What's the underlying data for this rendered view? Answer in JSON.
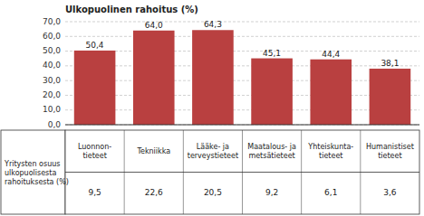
{
  "chart_data": {
    "type": "bar",
    "title": "Ulkopuolinen rahoitus (%)",
    "categories": [
      "Luonnon-\ntieteet",
      "Tekniikka",
      "Lääke- ja\nterveystieteet",
      "Maatalous- ja\nmetsätieteet",
      "Yhteiskunta-\ntieteet",
      "Humanistiset\ntieteet"
    ],
    "values": [
      50.4,
      64.0,
      64.3,
      45.1,
      44.4,
      38.1
    ],
    "value_labels": [
      "50,4",
      "64,0",
      "64,3",
      "45,1",
      "44,4",
      "38,1"
    ],
    "data_labels": true,
    "color": "#b94040",
    "ylim": [
      0,
      70
    ],
    "yticks": [
      {
        "value": 0.0,
        "label": "0,0"
      },
      {
        "value": 10.0,
        "label": "10,0"
      },
      {
        "value": 20.0,
        "label": "20,0"
      },
      {
        "value": 30.0,
        "label": "30,0"
      },
      {
        "value": 40.0,
        "label": "40,0"
      },
      {
        "value": 50.0,
        "label": "50,0"
      },
      {
        "value": 60.0,
        "label": "60,0"
      },
      {
        "value": 70.0,
        "label": "70,0"
      }
    ],
    "grid": true,
    "table_row_label": "Yritysten osuus\nulkopuolisesta\nrahoituksesta (%)",
    "table_values": [
      9.5,
      22.6,
      20.5,
      9.2,
      6.1,
      3.6
    ],
    "table_value_labels": [
      "9,5",
      "22,6",
      "20,5",
      "9,2",
      "6,1",
      "3,6"
    ]
  }
}
